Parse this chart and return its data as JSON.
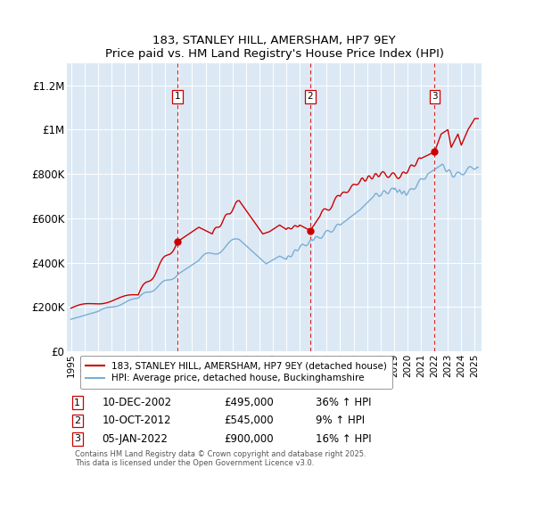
{
  "title": "183, STANLEY HILL, AMERSHAM, HP7 9EY",
  "subtitle": "Price paid vs. HM Land Registry's House Price Index (HPI)",
  "plot_bg_color": "#dce9f5",
  "red_line_color": "#cc0000",
  "blue_line_color": "#7aadd4",
  "vline_color": "#cc0000",
  "ylim": [
    0,
    1300000
  ],
  "yticks": [
    0,
    200000,
    400000,
    600000,
    800000,
    1000000,
    1200000
  ],
  "ytick_labels": [
    "£0",
    "£200K",
    "£400K",
    "£600K",
    "£800K",
    "£1M",
    "£1.2M"
  ],
  "legend_entries": [
    "183, STANLEY HILL, AMERSHAM, HP7 9EY (detached house)",
    "HPI: Average price, detached house, Buckinghamshire"
  ],
  "transactions": [
    {
      "num": 1,
      "date": "10-DEC-2002",
      "year": 2002.92,
      "price": 495000,
      "hpi_pct": "36%",
      "hpi_dir": "↑"
    },
    {
      "num": 2,
      "date": "10-OCT-2012",
      "year": 2012.78,
      "price": 545000,
      "hpi_pct": "9%",
      "hpi_dir": "↑"
    },
    {
      "num": 3,
      "date": "05-JAN-2022",
      "year": 2022.02,
      "price": 900000,
      "hpi_pct": "16%",
      "hpi_dir": "↑"
    }
  ],
  "footer": "Contains HM Land Registry data © Crown copyright and database right 2025.\nThis data is licensed under the Open Government Licence v3.0.",
  "xmin": 1994.7,
  "xmax": 2025.5,
  "xticks": [
    1995,
    1996,
    1997,
    1998,
    1999,
    2000,
    2001,
    2002,
    2003,
    2004,
    2005,
    2006,
    2007,
    2008,
    2009,
    2010,
    2011,
    2012,
    2013,
    2014,
    2015,
    2016,
    2017,
    2018,
    2019,
    2020,
    2021,
    2022,
    2023,
    2024,
    2025
  ]
}
